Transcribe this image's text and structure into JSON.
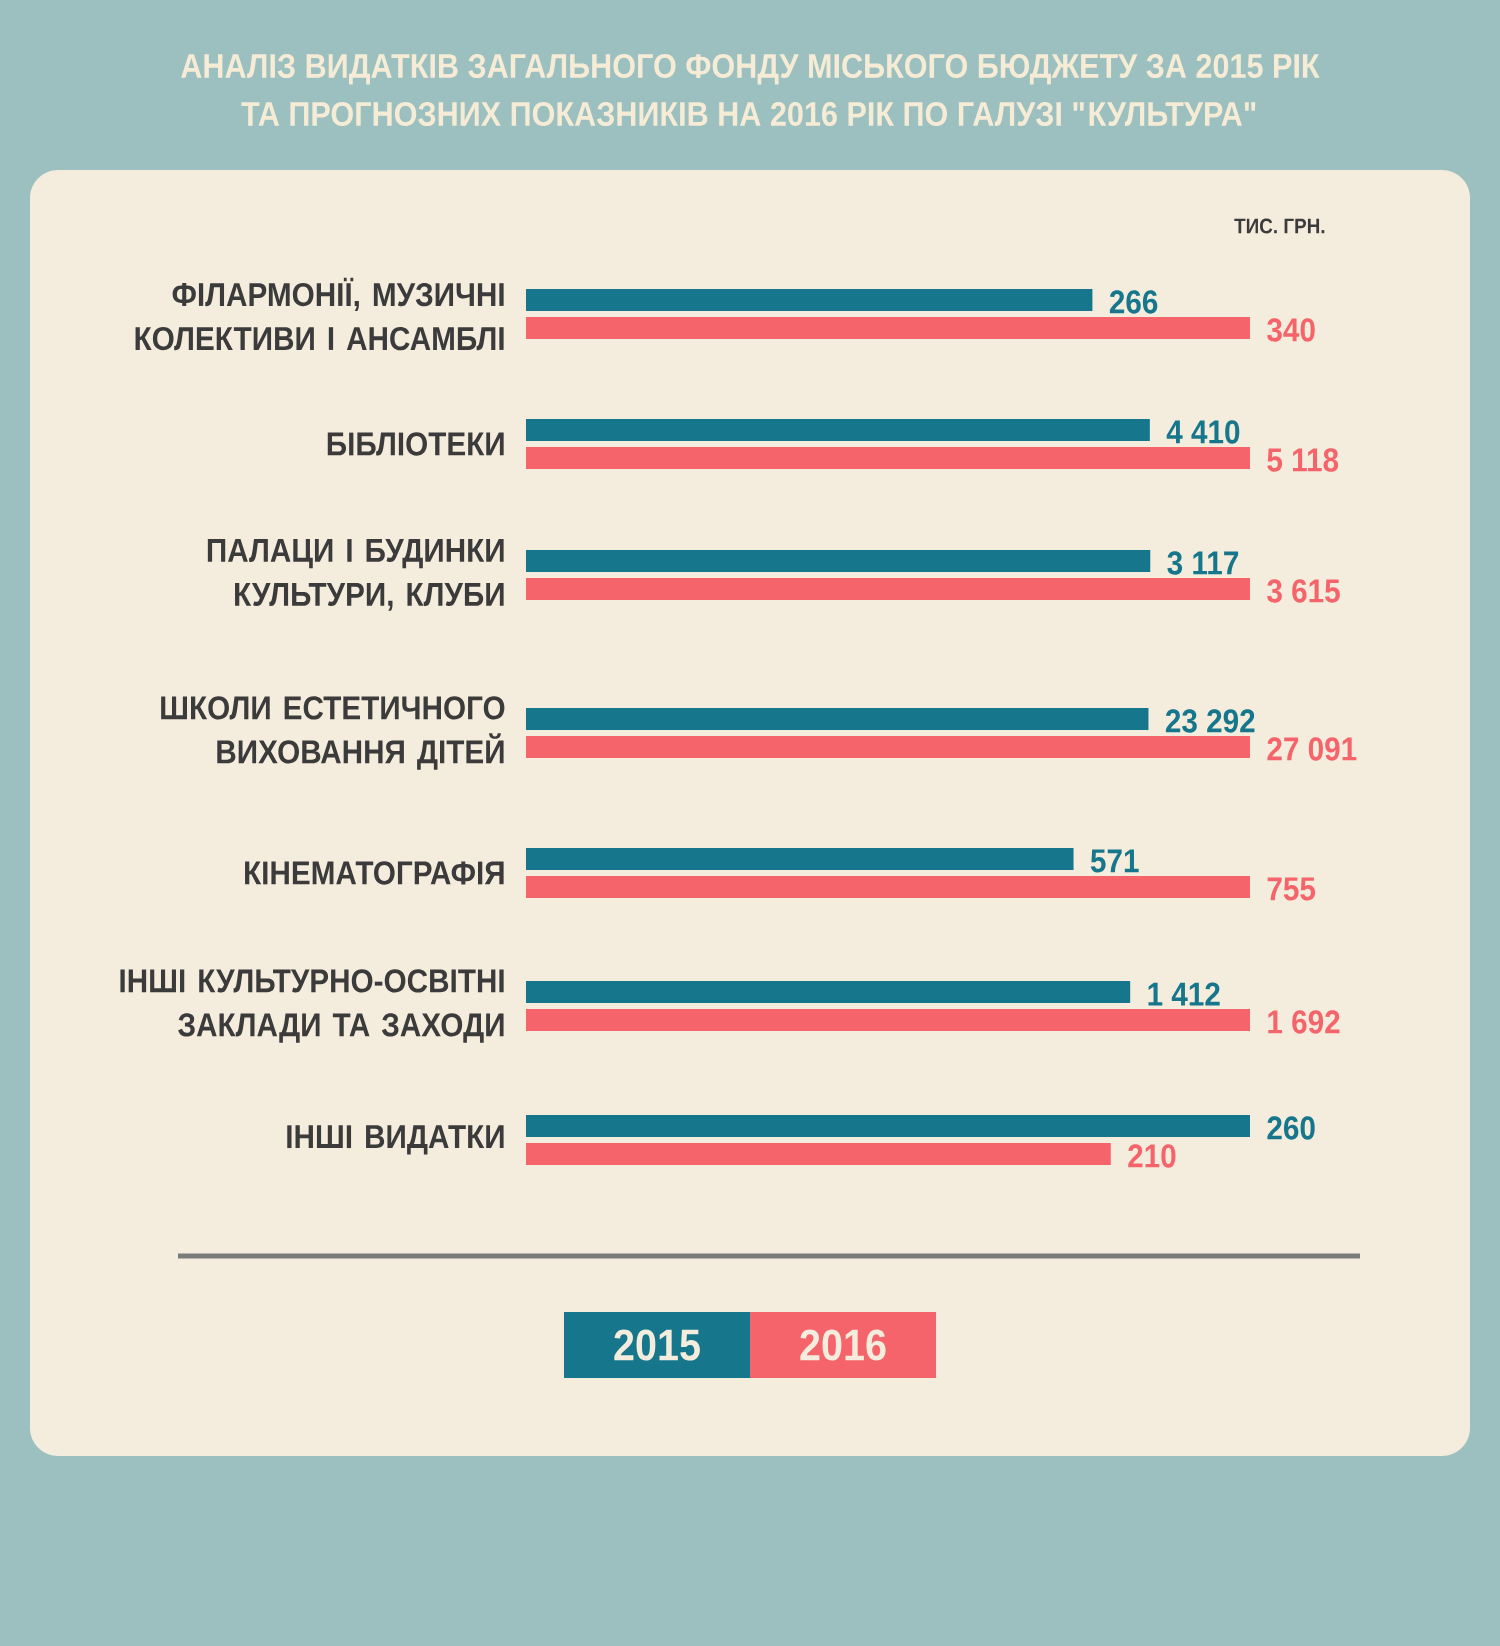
{
  "chart_data": [
    {
      "type": "bar",
      "orientation": "horizontal",
      "title": "АНАЛІЗ ВИДАТКІВ ЗАГАЛЬНОГО ФОНДУ МІСЬКОГО БЮДЖЕТУ ЗА 2015 РІК ТА ПРОГНОЗНИХ ПОКАЗНИКІВ НА 2016 РІК ПО ГАЛУЗІ \"КУЛЬТУРА\"",
      "annotations": [
        "ТИС. ГРН."
      ],
      "categories": [
        "ФІЛАРМОНІЇ, МУЗИЧНІ КОЛЕКТИВИ І АНСАМБЛІ"
      ],
      "series": [
        {
          "color": "#16768c",
          "values": [
            266
          ],
          "value_labels": [
            "266"
          ]
        },
        {
          "color": "#f5646a",
          "values": [
            340
          ],
          "value_labels": [
            "340"
          ]
        }
      ],
      "xlim": [
        0,
        340
      ],
      "tick_labels": "y"
    },
    {
      "type": "bar",
      "orientation": "horizontal",
      "categories": [
        "БІБЛІОТЕКИ"
      ],
      "series": [
        {
          "color": "#16768c",
          "values": [
            4410
          ],
          "value_labels": [
            "4 410"
          ]
        },
        {
          "color": "#f5646a",
          "values": [
            5118
          ],
          "value_labels": [
            "5 118"
          ]
        }
      ],
      "xlim": [
        0,
        5118
      ],
      "tick_labels": "y"
    },
    {
      "type": "bar",
      "orientation": "horizontal",
      "categories": [
        "ПАЛАЦИ І БУДИНКИ КУЛЬТУРИ, КЛУБИ"
      ],
      "series": [
        {
          "color": "#16768c",
          "values": [
            3117
          ],
          "value_labels": [
            "3 117"
          ]
        },
        {
          "color": "#f5646a",
          "values": [
            3615
          ],
          "value_labels": [
            "3 615"
          ]
        }
      ],
      "xlim": [
        0,
        3615
      ],
      "tick_labels": "y"
    },
    {
      "type": "bar",
      "orientation": "horizontal",
      "categories": [
        "ШКОЛИ ЕСТЕТИЧНОГО ВИХОВАННЯ ДІТЕЙ"
      ],
      "series": [
        {
          "color": "#16768c",
          "values": [
            23292
          ],
          "value_labels": [
            "23 292"
          ]
        },
        {
          "color": "#f5646a",
          "values": [
            27091
          ],
          "value_labels": [
            "27 091"
          ]
        }
      ],
      "xlim": [
        0,
        27091
      ],
      "tick_labels": "y"
    },
    {
      "type": "bar",
      "orientation": "horizontal",
      "categories": [
        "КІНЕМАТОГРАФІЯ"
      ],
      "series": [
        {
          "color": "#16768c",
          "values": [
            571
          ],
          "value_labels": [
            "571"
          ]
        },
        {
          "color": "#f5646a",
          "values": [
            755
          ],
          "value_labels": [
            "755"
          ]
        }
      ],
      "xlim": [
        0,
        755
      ],
      "tick_labels": "y"
    },
    {
      "type": "bar",
      "orientation": "horizontal",
      "categories": [
        "ІНШІ КУЛЬТУРНО-ОСВІТНІ ЗАКЛАДИ ТА ЗАХОДИ"
      ],
      "series": [
        {
          "color": "#16768c",
          "values": [
            1412
          ],
          "value_labels": [
            "1 412"
          ]
        },
        {
          "color": "#f5646a",
          "values": [
            1692
          ],
          "value_labels": [
            "1 692"
          ]
        }
      ],
      "xlim": [
        0,
        1692
      ],
      "tick_labels": "y"
    },
    {
      "type": "bar",
      "orientation": "horizontal",
      "categories": [
        "ІНШІ ВИДАТКИ"
      ],
      "series": [
        {
          "name": "2015",
          "color": "#16768c",
          "values": [
            260
          ],
          "value_labels": [
            "260"
          ]
        },
        {
          "name": "2016",
          "color": "#f5646a",
          "values": [
            210
          ],
          "value_labels": [
            "210"
          ]
        }
      ],
      "xlim": [
        0,
        260
      ],
      "tick_labels": "y",
      "legend": "bottom"
    }
  ]
}
